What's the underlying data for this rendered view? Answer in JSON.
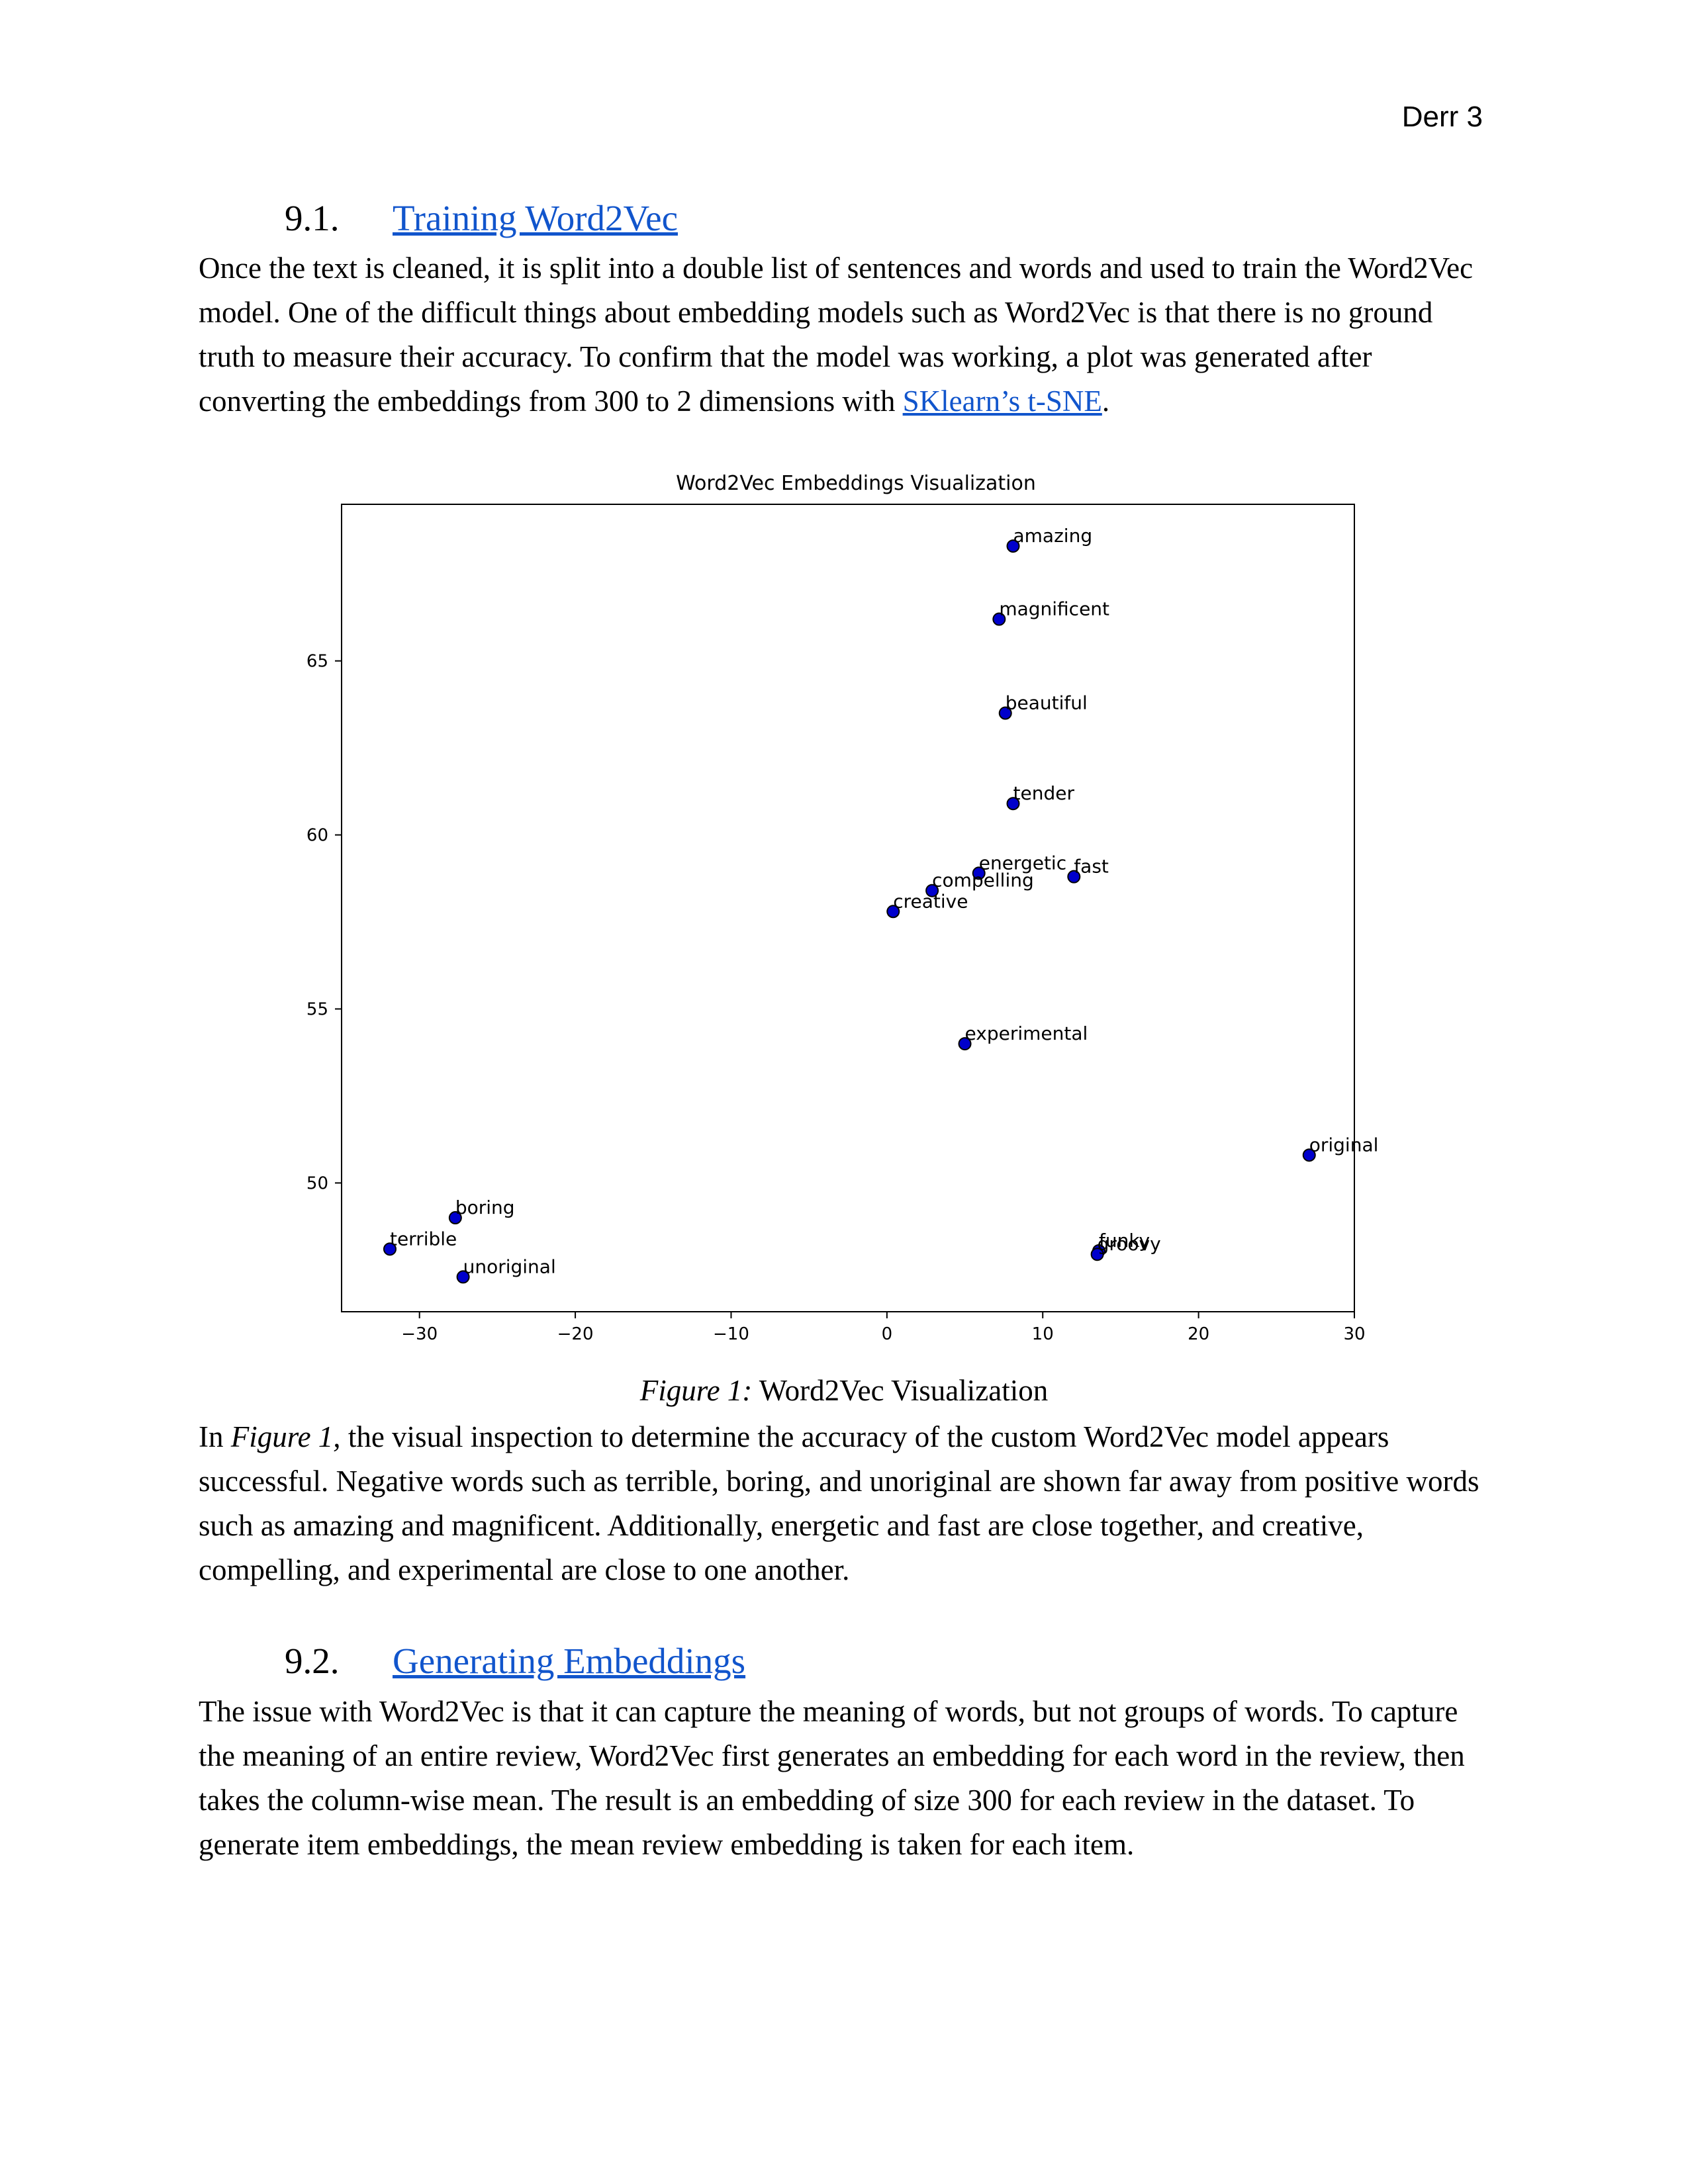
{
  "header": {
    "page_label": "Derr 3"
  },
  "section_1": {
    "number": "9.1.",
    "title": "Training Word2Vec",
    "para_text": "Once the text is cleaned, it is split into a double list of sentences and words and used to train the Word2Vec model. One of the difficult things about embedding models such as Word2Vec is that there is no ground truth to measure their accuracy. To confirm that the model was working, a plot was generated after converting the embeddings from 300 to 2 dimensions with ",
    "para_link": "SKlearn’s t-SNE",
    "para_end": "."
  },
  "figure": {
    "caption_label": "Figure 1:",
    "caption_text": " Word2Vec Visualization"
  },
  "section_1_followup": {
    "pre": "In ",
    "figure_ref": "Figure 1,",
    "text": " the visual inspection to determine the accuracy of the custom Word2Vec model appears successful. Negative words such as terrible, boring, and unoriginal are shown far away from positive words such as amazing and magnificent. Additionally, energetic and fast are close together, and creative, compelling, and experimental are close to one another."
  },
  "section_2": {
    "number": "9.2.",
    "title": "Generating Embeddings",
    "para_text": "The issue with Word2Vec is that it can capture the meaning of words, but not groups of words. To capture the meaning of an entire review, Word2Vec first generates an embedding for each word in the review, then takes the column-wise mean. The result is an embedding of size 300 for each review in the dataset. To generate item embeddings, the mean review embedding is taken for each item."
  },
  "chart_data": {
    "type": "scatter",
    "title": "Word2Vec Embeddings Visualization",
    "xlabel": "",
    "ylabel": "",
    "xlim": [
      -35,
      30
    ],
    "ylim": [
      46.3,
      69.5
    ],
    "x_ticks": [
      -30,
      -20,
      -10,
      0,
      10,
      20,
      30
    ],
    "x_tick_labels": [
      "−30",
      "−20",
      "−10",
      "0",
      "10",
      "20",
      "30"
    ],
    "y_ticks": [
      50,
      55,
      60,
      65
    ],
    "y_tick_labels": [
      "50",
      "55",
      "60",
      "65"
    ],
    "grid": false,
    "marker_color": "#0000cc",
    "marker_edge": "#000000",
    "points": [
      {
        "label": "amazing",
        "x": 8.1,
        "y": 68.3
      },
      {
        "label": "magnificent",
        "x": 7.2,
        "y": 66.2
      },
      {
        "label": "beautiful",
        "x": 7.6,
        "y": 63.5
      },
      {
        "label": "tender",
        "x": 8.1,
        "y": 60.9
      },
      {
        "label": "energetic",
        "x": 5.9,
        "y": 58.9
      },
      {
        "label": "fast",
        "x": 12.0,
        "y": 58.8
      },
      {
        "label": "compelling",
        "x": 2.9,
        "y": 58.4
      },
      {
        "label": "creative",
        "x": 0.4,
        "y": 57.8
      },
      {
        "label": "experimental",
        "x": 5.0,
        "y": 54.0
      },
      {
        "label": "original",
        "x": 27.1,
        "y": 50.8
      },
      {
        "label": "boring",
        "x": -27.7,
        "y": 49.0
      },
      {
        "label": "terrible",
        "x": -31.9,
        "y": 48.1
      },
      {
        "label": "unoriginal",
        "x": -27.2,
        "y": 47.3
      },
      {
        "label": "funky",
        "x": 13.6,
        "y": 48.05
      },
      {
        "label": "groovy",
        "x": 13.5,
        "y": 47.95
      }
    ]
  }
}
